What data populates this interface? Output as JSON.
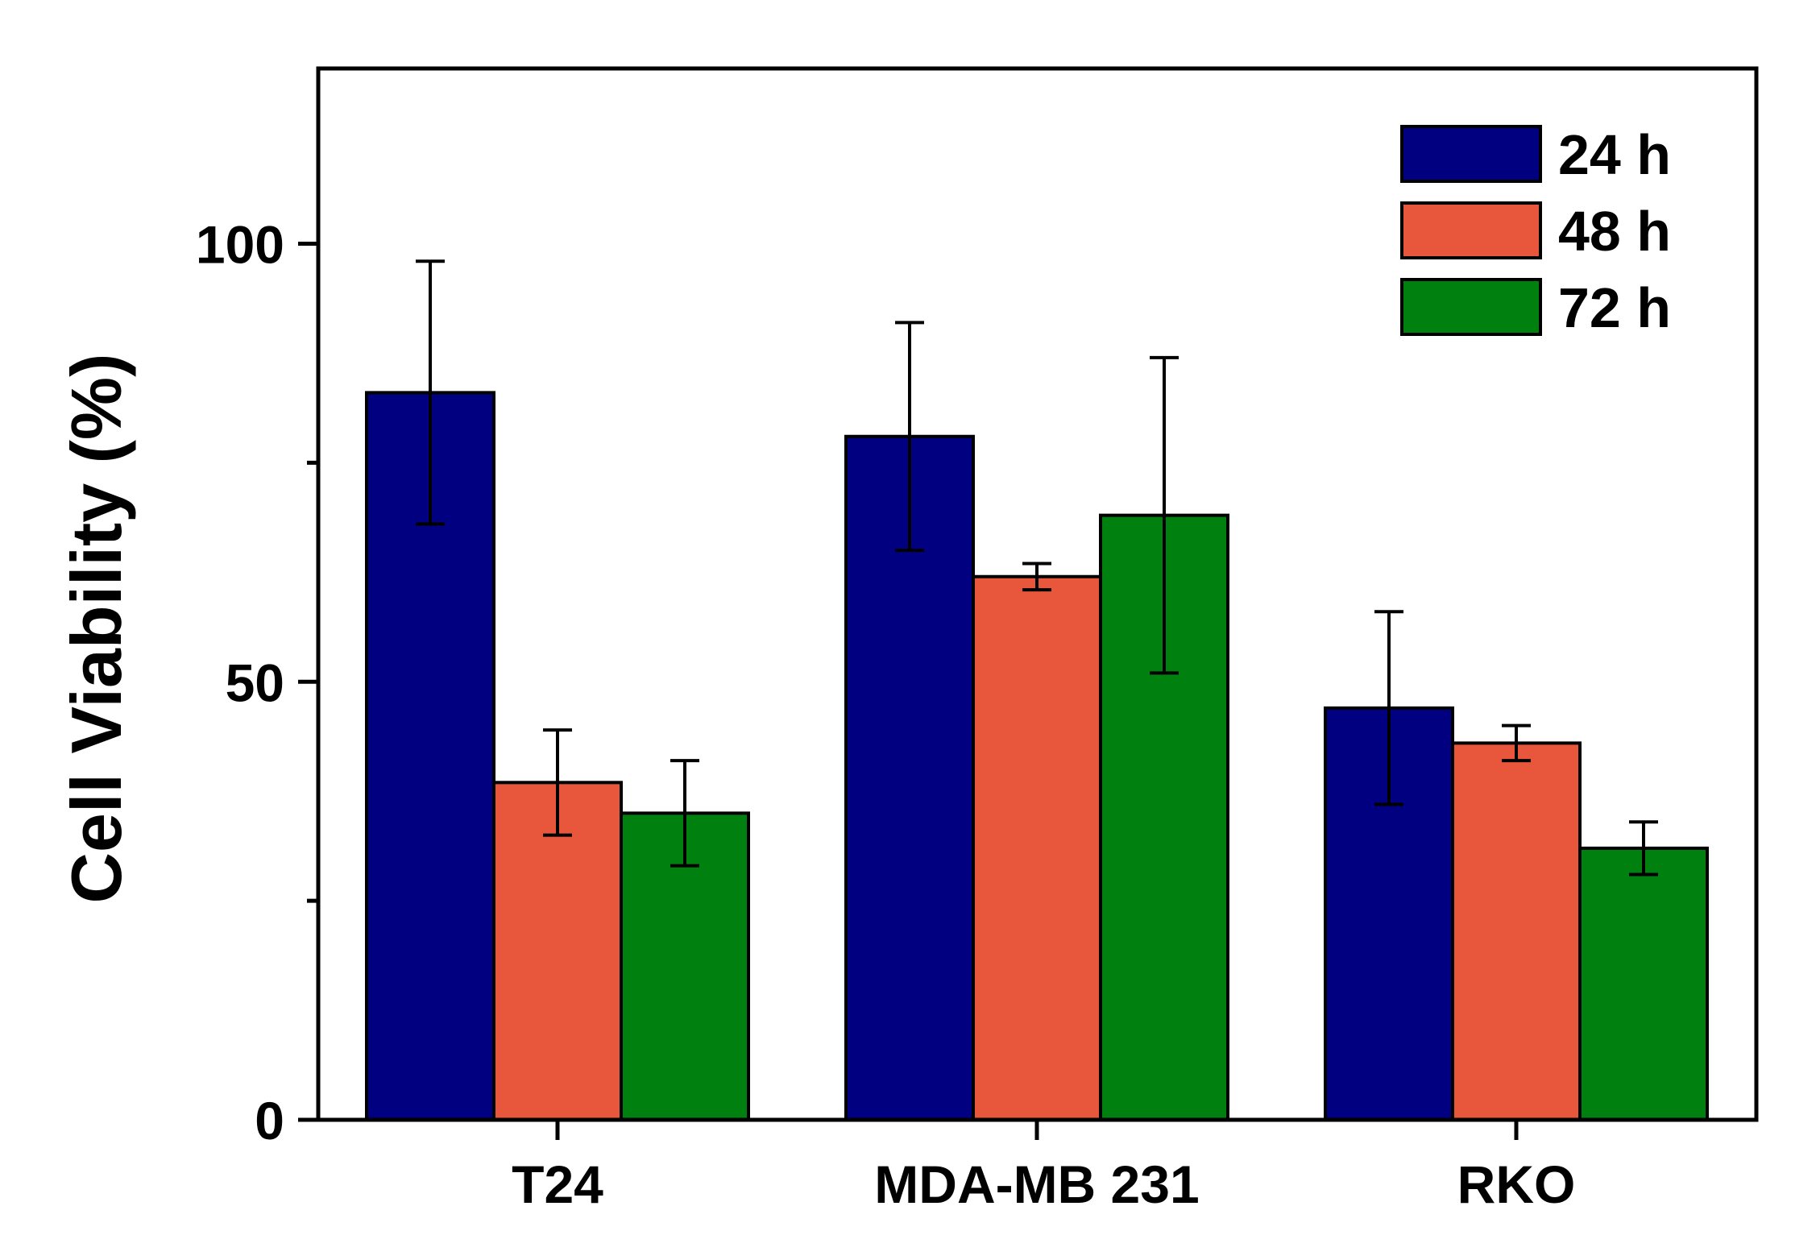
{
  "chart_data": {
    "type": "bar",
    "title": "",
    "xlabel": "",
    "ylabel": "Cell Viability (%)",
    "ylim": [
      0,
      120
    ],
    "yticks": [
      0,
      50,
      100
    ],
    "yticks_minor": [
      25,
      75
    ],
    "grid": false,
    "legend_position": "top-right",
    "categories": [
      "T24",
      "MDA-MB 231",
      "RKO"
    ],
    "series": [
      {
        "name": "24 h",
        "color": "#000080",
        "values": [
          83,
          78,
          47
        ],
        "errors": [
          15,
          13,
          11
        ]
      },
      {
        "name": "48 h",
        "color": "#E8563B",
        "values": [
          38.5,
          62,
          43
        ],
        "errors": [
          6,
          1.5,
          2
        ]
      },
      {
        "name": "72 h",
        "color": "#00800F",
        "values": [
          35,
          69,
          31
        ],
        "errors": [
          6,
          18,
          3
        ]
      }
    ]
  }
}
